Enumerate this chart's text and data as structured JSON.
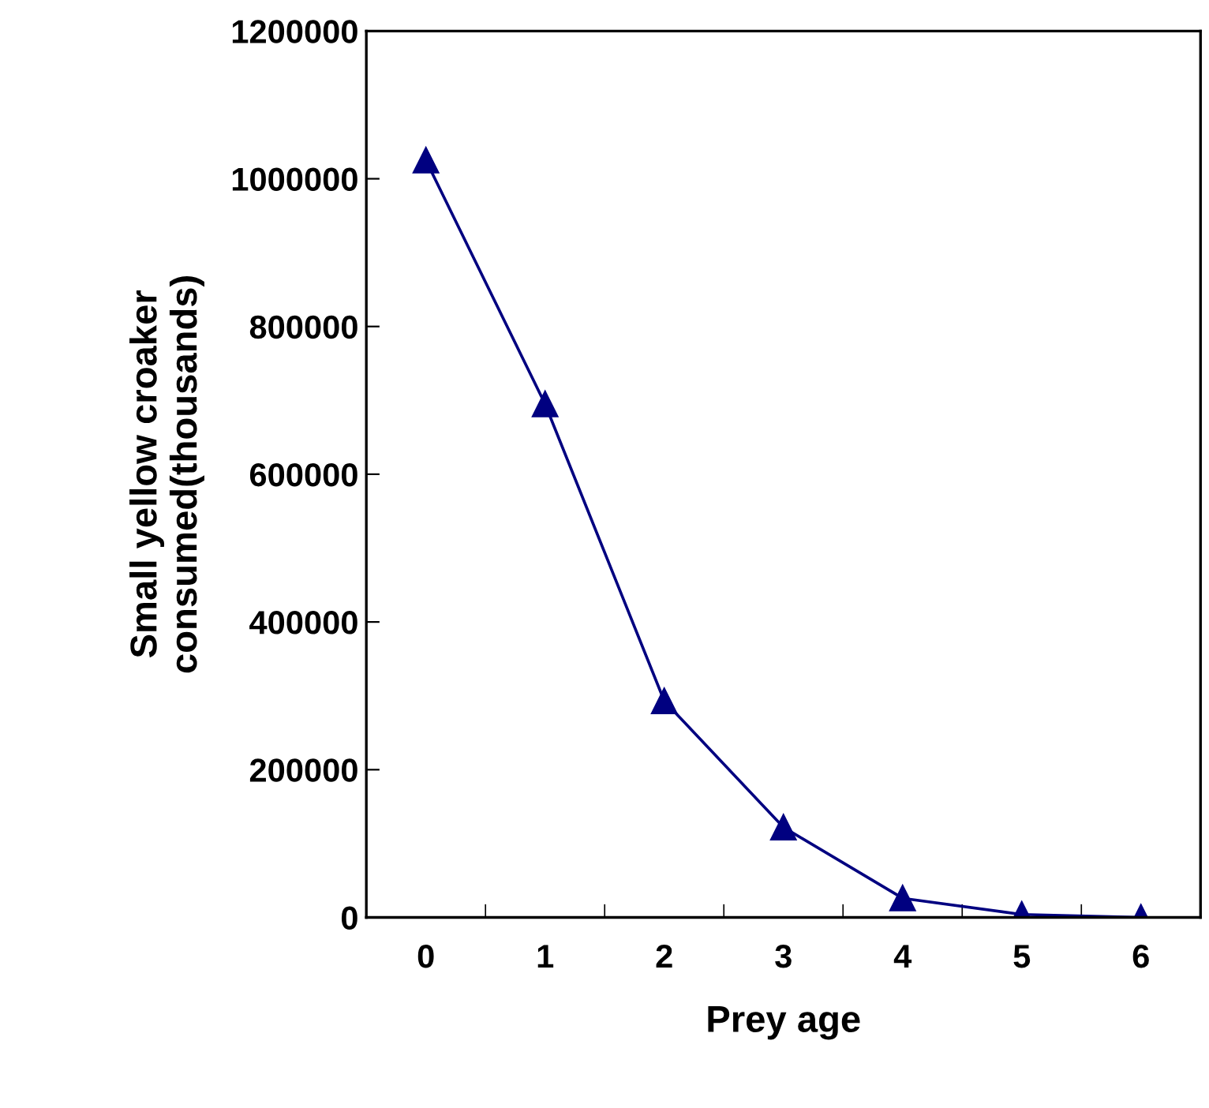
{
  "chart_data": {
    "type": "line",
    "xlabel": "Prey age",
    "ylabel": "Small yellow croaker\nconsumed(thousands)",
    "categories": [
      "0",
      "1",
      "2",
      "3",
      "4",
      "5",
      "6"
    ],
    "series": [
      {
        "color": "#000080",
        "values": [
          1025000,
          695000,
          293000,
          122000,
          26000,
          4000,
          0
        ]
      }
    ],
    "ylim": [
      0,
      1200000
    ],
    "yticks": [
      0,
      200000,
      400000,
      600000,
      800000,
      1000000,
      1200000
    ],
    "marker": "triangle",
    "line_style": "solid",
    "grid": false,
    "legend": false
  }
}
